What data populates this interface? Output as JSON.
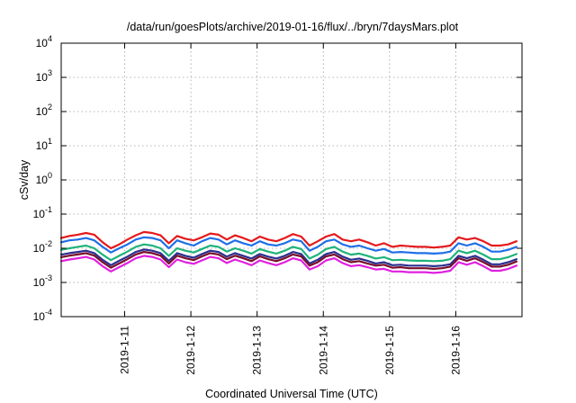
{
  "chart_data": {
    "type": "line",
    "title": "/data/run/goesPlots/archive/2019-01-16/flux/../bryn/7daysMars.plot",
    "xlabel": "Coordinated Universal Time (UTC)",
    "ylabel": "cSv/day",
    "yscale": "log",
    "ylim": [
      0.0001,
      10000
    ],
    "xlim": [
      "2019-01-10T01:00",
      "2019-01-17T00:00"
    ],
    "grid": true,
    "x_ticks": [
      "2019-1-11",
      "2019-1-12",
      "2019-1-13",
      "2019-1-14",
      "2019-1-15",
      "2019-1-16"
    ],
    "y_ticks": [
      {
        "base": "10",
        "exp": "-4",
        "value": 0.0001
      },
      {
        "base": "10",
        "exp": "-3",
        "value": 0.001
      },
      {
        "base": "10",
        "exp": "-2",
        "value": 0.01
      },
      {
        "base": "10",
        "exp": "-1",
        "value": 0.1
      },
      {
        "base": "10",
        "exp": "0",
        "value": 1
      },
      {
        "base": "10",
        "exp": "1",
        "value": 10
      },
      {
        "base": "10",
        "exp": "2",
        "value": 100
      },
      {
        "base": "10",
        "exp": "3",
        "value": 1000
      },
      {
        "base": "10",
        "exp": "4",
        "value": 10000
      }
    ],
    "x": [
      "2019-01-10T01:00",
      "2019-01-10T04:00",
      "2019-01-10T07:00",
      "2019-01-10T10:00",
      "2019-01-10T13:00",
      "2019-01-10T16:00",
      "2019-01-10T19:00",
      "2019-01-10T22:00",
      "2019-01-11T01:00",
      "2019-01-11T04:00",
      "2019-01-11T07:00",
      "2019-01-11T10:00",
      "2019-01-11T13:00",
      "2019-01-11T16:00",
      "2019-01-11T19:00",
      "2019-01-11T22:00",
      "2019-01-12T01:00",
      "2019-01-12T04:00",
      "2019-01-12T07:00",
      "2019-01-12T10:00",
      "2019-01-12T13:00",
      "2019-01-12T16:00",
      "2019-01-12T19:00",
      "2019-01-12T22:00",
      "2019-01-13T01:00",
      "2019-01-13T04:00",
      "2019-01-13T07:00",
      "2019-01-13T10:00",
      "2019-01-13T13:00",
      "2019-01-13T16:00",
      "2019-01-13T19:00",
      "2019-01-13T22:00",
      "2019-01-14T01:00",
      "2019-01-14T04:00",
      "2019-01-14T07:00",
      "2019-01-14T10:00",
      "2019-01-14T13:00",
      "2019-01-14T16:00",
      "2019-01-14T19:00",
      "2019-01-14T22:00",
      "2019-01-15T01:00",
      "2019-01-15T04:00",
      "2019-01-15T07:00",
      "2019-01-15T10:00",
      "2019-01-15T13:00",
      "2019-01-15T16:00",
      "2019-01-15T19:00",
      "2019-01-15T22:00",
      "2019-01-16T01:00",
      "2019-01-16T04:00",
      "2019-01-16T07:00",
      "2019-01-16T10:00",
      "2019-01-16T13:00",
      "2019-01-16T16:00",
      "2019-01-16T19:00",
      "2019-01-16T22:00"
    ],
    "series": [
      {
        "color": "#e41a1c",
        "values": [
          0.02,
          0.023,
          0.025,
          0.028,
          0.025,
          0.015,
          0.01,
          0.013,
          0.018,
          0.024,
          0.03,
          0.028,
          0.024,
          0.014,
          0.023,
          0.019,
          0.017,
          0.021,
          0.027,
          0.025,
          0.018,
          0.024,
          0.02,
          0.016,
          0.022,
          0.018,
          0.016,
          0.02,
          0.026,
          0.022,
          0.012,
          0.016,
          0.022,
          0.026,
          0.018,
          0.016,
          0.018,
          0.015,
          0.012,
          0.014,
          0.011,
          0.012,
          0.0115,
          0.011,
          0.011,
          0.0105,
          0.011,
          0.012,
          0.021,
          0.018,
          0.02,
          0.016,
          0.012,
          0.012,
          0.013,
          0.016
        ]
      },
      {
        "color": "#1f6fe6",
        "values": [
          0.015,
          0.017,
          0.018,
          0.02,
          0.017,
          0.011,
          0.0075,
          0.01,
          0.013,
          0.018,
          0.021,
          0.02,
          0.017,
          0.01,
          0.017,
          0.014,
          0.012,
          0.016,
          0.02,
          0.018,
          0.013,
          0.017,
          0.014,
          0.012,
          0.016,
          0.013,
          0.012,
          0.014,
          0.018,
          0.016,
          0.0085,
          0.011,
          0.016,
          0.018,
          0.013,
          0.011,
          0.012,
          0.01,
          0.0085,
          0.0095,
          0.0075,
          0.0078,
          0.0075,
          0.0072,
          0.0072,
          0.007,
          0.0072,
          0.008,
          0.014,
          0.012,
          0.014,
          0.011,
          0.008,
          0.008,
          0.009,
          0.011
        ]
      },
      {
        "color": "#1fb37a",
        "values": [
          0.009,
          0.01,
          0.011,
          0.012,
          0.01,
          0.0065,
          0.0045,
          0.006,
          0.008,
          0.011,
          0.013,
          0.012,
          0.01,
          0.006,
          0.01,
          0.0085,
          0.0075,
          0.0095,
          0.012,
          0.011,
          0.008,
          0.01,
          0.0085,
          0.007,
          0.0095,
          0.008,
          0.007,
          0.0085,
          0.011,
          0.0095,
          0.005,
          0.0065,
          0.0095,
          0.011,
          0.008,
          0.0065,
          0.007,
          0.006,
          0.005,
          0.0055,
          0.0045,
          0.0046,
          0.0044,
          0.0043,
          0.0043,
          0.0042,
          0.0043,
          0.0048,
          0.0085,
          0.0072,
          0.0085,
          0.0065,
          0.0048,
          0.0048,
          0.0055,
          0.0068
        ]
      },
      {
        "color": "#2a2f8f",
        "values": [
          0.0065,
          0.0072,
          0.0078,
          0.0085,
          0.0072,
          0.0046,
          0.0032,
          0.0043,
          0.0057,
          0.0078,
          0.0092,
          0.0085,
          0.0072,
          0.0043,
          0.0072,
          0.006,
          0.0053,
          0.0068,
          0.0085,
          0.0078,
          0.0057,
          0.0072,
          0.006,
          0.005,
          0.0068,
          0.0057,
          0.005,
          0.006,
          0.0078,
          0.0068,
          0.0036,
          0.0046,
          0.0068,
          0.0078,
          0.0057,
          0.0046,
          0.005,
          0.0043,
          0.0036,
          0.0039,
          0.0032,
          0.0033,
          0.0031,
          0.0031,
          0.0031,
          0.003,
          0.0031,
          0.0034,
          0.006,
          0.0051,
          0.006,
          0.0046,
          0.0034,
          0.0034,
          0.0039,
          0.0048
        ]
      },
      {
        "color": "#7a0f2a",
        "values": [
          0.0055,
          0.0061,
          0.0066,
          0.0072,
          0.0061,
          0.0039,
          0.0027,
          0.0036,
          0.0048,
          0.0066,
          0.0078,
          0.0072,
          0.0061,
          0.0036,
          0.0061,
          0.0051,
          0.0045,
          0.0058,
          0.0072,
          0.0066,
          0.0048,
          0.0061,
          0.0051,
          0.0042,
          0.0058,
          0.0048,
          0.0042,
          0.0051,
          0.0066,
          0.0058,
          0.0031,
          0.0039,
          0.0058,
          0.0066,
          0.0048,
          0.0039,
          0.0042,
          0.0036,
          0.0031,
          0.0033,
          0.0027,
          0.0028,
          0.0026,
          0.0026,
          0.0026,
          0.0025,
          0.0026,
          0.0029,
          0.0051,
          0.0043,
          0.0051,
          0.0039,
          0.0029,
          0.0029,
          0.0033,
          0.0041
        ]
      },
      {
        "color": "#e020e0",
        "values": [
          0.0042,
          0.0047,
          0.0051,
          0.0056,
          0.0047,
          0.003,
          0.0021,
          0.0028,
          0.0037,
          0.0051,
          0.006,
          0.0056,
          0.0047,
          0.0028,
          0.0047,
          0.0039,
          0.0035,
          0.0044,
          0.0056,
          0.0051,
          0.0037,
          0.0047,
          0.0039,
          0.0032,
          0.0044,
          0.0037,
          0.0032,
          0.0039,
          0.0051,
          0.0044,
          0.0024,
          0.003,
          0.0044,
          0.0051,
          0.0037,
          0.003,
          0.0032,
          0.0028,
          0.0024,
          0.0025,
          0.0021,
          0.0021,
          0.002,
          0.002,
          0.002,
          0.0019,
          0.002,
          0.0022,
          0.0039,
          0.0033,
          0.0039,
          0.003,
          0.0022,
          0.0022,
          0.0025,
          0.0031
        ]
      }
    ]
  }
}
